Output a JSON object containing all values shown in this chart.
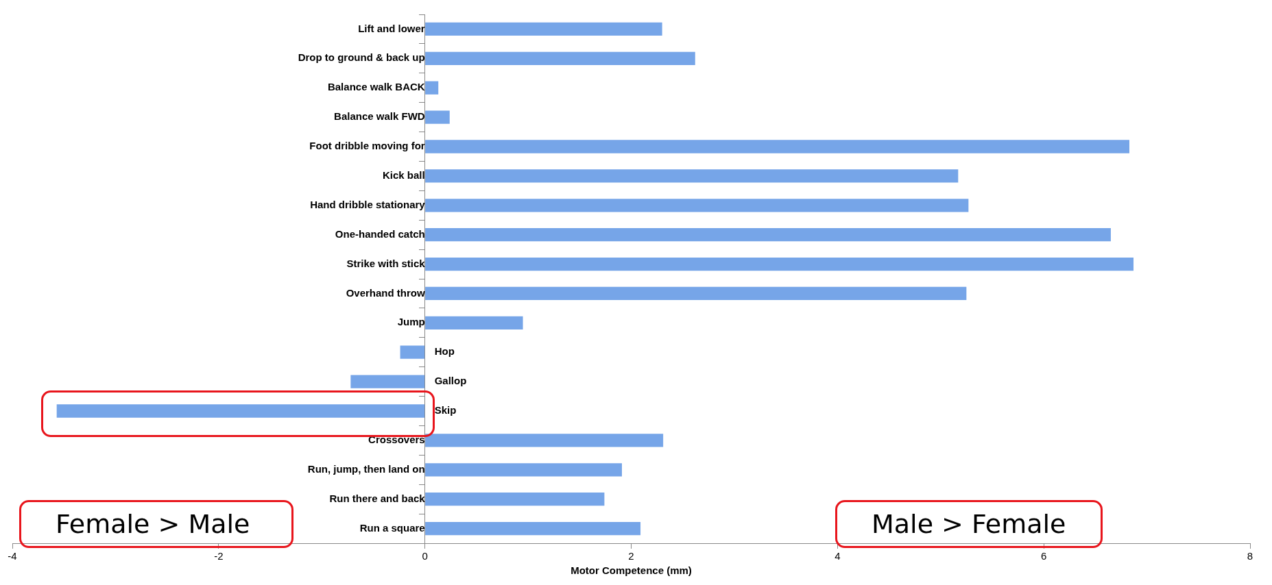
{
  "chart_data": {
    "type": "bar",
    "orientation": "horizontal",
    "xlabel": "Motor Competence (mm)",
    "categories": [
      "Lift and lower",
      "Drop to ground & back up",
      "Balance walk BACK",
      "Balance walk FWD",
      "Foot dribble moving for",
      "Kick ball",
      "Hand dribble stationary",
      "One-handed catch",
      "Strike with stick",
      "Overhand throw",
      "Jump",
      "Hop",
      "Gallop",
      "Skip",
      "Crossovers",
      "Run, jump, then land on",
      "Run there and back",
      "Run a square"
    ],
    "values": [
      2.3,
      2.62,
      0.13,
      0.24,
      6.83,
      5.17,
      5.27,
      6.65,
      6.87,
      5.25,
      0.95,
      -0.24,
      -0.72,
      -3.57,
      2.31,
      1.91,
      1.74,
      2.09
    ],
    "color": "#76a5e8",
    "xlim": [
      -4,
      8
    ],
    "xticks": [
      -4,
      -2,
      0,
      2,
      4,
      6,
      8
    ],
    "grid": false,
    "legend": false,
    "annotations": [
      "Female > Male",
      "Male > Female"
    ]
  }
}
